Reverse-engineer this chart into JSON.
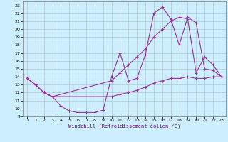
{
  "xlabel": "Windchill (Refroidissement éolien,°C)",
  "background_color": "#cceeff",
  "grid_color": "#b0c8cc",
  "line_color": "#993399",
  "xlim": [
    -0.5,
    23.5
  ],
  "ylim": [
    9,
    23.5
  ],
  "xticks": [
    0,
    1,
    2,
    3,
    4,
    5,
    6,
    7,
    8,
    9,
    10,
    11,
    12,
    13,
    14,
    15,
    16,
    17,
    18,
    19,
    20,
    21,
    22,
    23
  ],
  "yticks": [
    9,
    10,
    11,
    12,
    13,
    14,
    15,
    16,
    17,
    18,
    19,
    20,
    21,
    22,
    23
  ],
  "curve1_x": [
    0,
    1,
    2,
    3,
    4,
    5,
    6,
    7,
    8,
    9,
    10,
    11,
    12,
    13,
    14,
    15,
    16,
    17,
    18,
    19,
    20,
    21,
    22,
    23
  ],
  "curve1_y": [
    13.8,
    13.0,
    12.0,
    11.5,
    10.3,
    9.7,
    9.5,
    9.5,
    9.5,
    9.8,
    14.0,
    17.0,
    13.5,
    13.8,
    16.8,
    22.0,
    22.8,
    21.3,
    18.0,
    21.5,
    20.8,
    15.0,
    14.8,
    14.0
  ],
  "curve2_x": [
    0,
    1,
    2,
    3,
    10,
    11,
    12,
    13,
    14,
    15,
    16,
    17,
    18,
    19,
    20,
    21,
    22,
    23
  ],
  "curve2_y": [
    13.8,
    13.0,
    12.0,
    11.5,
    13.5,
    14.5,
    15.5,
    16.5,
    17.5,
    19.0,
    20.0,
    21.0,
    21.5,
    21.3,
    14.5,
    16.5,
    15.5,
    14.0
  ],
  "curve3_x": [
    0,
    1,
    2,
    3,
    10,
    11,
    12,
    13,
    14,
    15,
    16,
    17,
    18,
    19,
    20,
    21,
    22,
    23
  ],
  "curve3_y": [
    13.8,
    13.0,
    12.0,
    11.5,
    11.5,
    11.8,
    12.0,
    12.3,
    12.7,
    13.2,
    13.5,
    13.8,
    13.8,
    14.0,
    13.8,
    13.8,
    14.0,
    14.0
  ]
}
